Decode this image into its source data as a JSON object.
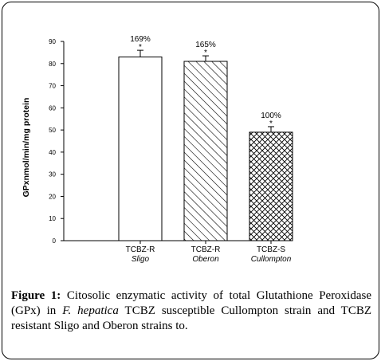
{
  "chart_data": {
    "type": "bar",
    "ylabel": "GPxnmol/min/mg protein",
    "ylim": [
      0,
      90
    ],
    "yticks": [
      0,
      10,
      20,
      30,
      40,
      50,
      60,
      70,
      80,
      90
    ],
    "categories": [
      {
        "line1": "TCBZ-R",
        "line2": "Sligo"
      },
      {
        "line1": "TCBZ-R",
        "line2": "Oberon"
      },
      {
        "line1": "TCBZ-S",
        "line2": "Cullompton"
      }
    ],
    "values": [
      83,
      81,
      49
    ],
    "errors": [
      3,
      2.5,
      2.5
    ],
    "bar_labels": [
      "169%",
      "165%",
      "100%"
    ],
    "significance": [
      "*",
      "*",
      "*"
    ],
    "fills": [
      "none",
      "diagonal-hatch",
      "crosshatch"
    ]
  },
  "caption": {
    "label": "Figure 1:",
    "text_before": " Citosolic enzymatic activity of total Glutathione Peroxidase (GPx) in ",
    "species": "F. hepatica",
    "text_after": " TCBZ susceptible Cullompton strain and TCBZ resistant Sligo and Oberon strains to."
  }
}
